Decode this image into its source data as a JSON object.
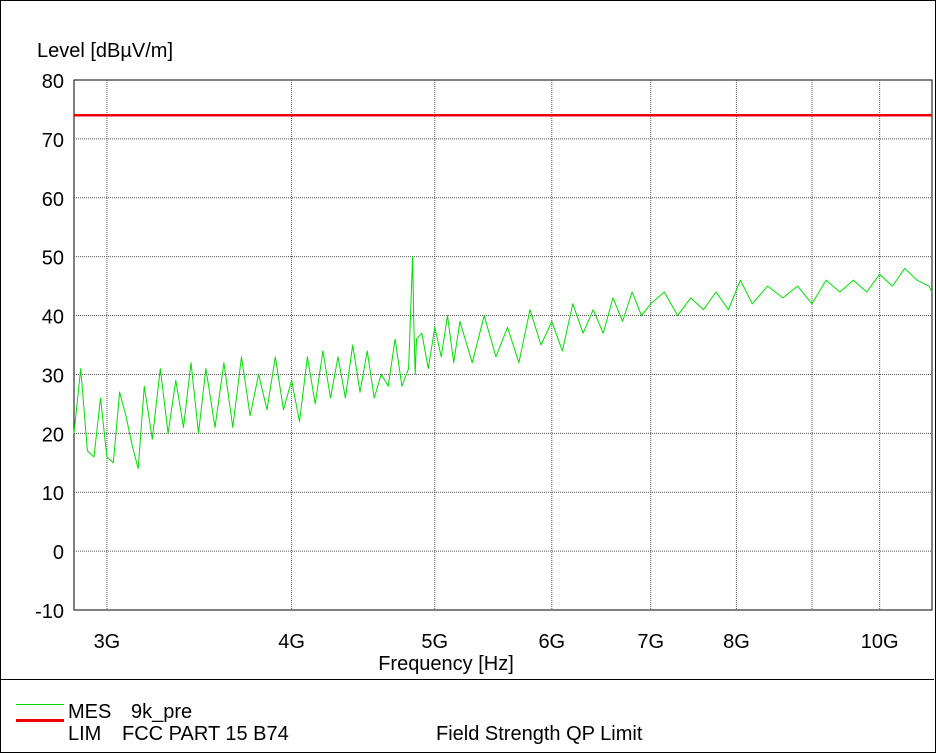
{
  "chart_data": {
    "type": "line",
    "ylabel": "Level [dBµV/m]",
    "xlabel": "Frequency [Hz]",
    "x_scale": "log",
    "xlim": [
      2850000000,
      10850000000
    ],
    "ylim": [
      -10,
      80
    ],
    "grid": true,
    "x_ticks": [
      {
        "value": 3000000000,
        "label": "3G"
      },
      {
        "value": 4000000000,
        "label": "4G"
      },
      {
        "value": 5000000000,
        "label": "5G"
      },
      {
        "value": 6000000000,
        "label": "6G"
      },
      {
        "value": 7000000000,
        "label": "7G"
      },
      {
        "value": 8000000000,
        "label": "8G"
      },
      {
        "value": 10000000000,
        "label": "10G"
      }
    ],
    "x_minor_gridlines": [
      9000000000
    ],
    "y_ticks": [
      -10,
      0,
      10,
      20,
      30,
      40,
      50,
      60,
      70,
      80
    ],
    "series": [
      {
        "name": "MES 9k_pre",
        "color": "#00dd00",
        "x": [
          2850000000,
          2880000000,
          2910000000,
          2940000000,
          2970000000,
          3000000000,
          3030000000,
          3060000000,
          3090000000,
          3120000000,
          3150000000,
          3180000000,
          3220000000,
          3260000000,
          3300000000,
          3340000000,
          3380000000,
          3420000000,
          3460000000,
          3500000000,
          3550000000,
          3600000000,
          3650000000,
          3700000000,
          3750000000,
          3800000000,
          3850000000,
          3900000000,
          3950000000,
          4000000000,
          4050000000,
          4100000000,
          4150000000,
          4200000000,
          4250000000,
          4300000000,
          4350000000,
          4400000000,
          4450000000,
          4500000000,
          4550000000,
          4600000000,
          4650000000,
          4700000000,
          4750000000,
          4800000000,
          4830000000,
          4840000000,
          4850000000,
          4860000000,
          4900000000,
          4950000000,
          5000000000,
          5050000000,
          5100000000,
          5150000000,
          5200000000,
          5300000000,
          5400000000,
          5500000000,
          5600000000,
          5700000000,
          5800000000,
          5900000000,
          6000000000,
          6100000000,
          6200000000,
          6300000000,
          6400000000,
          6500000000,
          6600000000,
          6700000000,
          6800000000,
          6900000000,
          7000000000,
          7150000000,
          7300000000,
          7450000000,
          7600000000,
          7750000000,
          7900000000,
          8050000000,
          8200000000,
          8400000000,
          8600000000,
          8800000000,
          9000000000,
          9200000000,
          9400000000,
          9600000000,
          9800000000,
          10000000000,
          10200000000,
          10400000000,
          10600000000,
          10800000000,
          10850000000
        ],
        "y": [
          20,
          31,
          17,
          16,
          26,
          16,
          15,
          27,
          23,
          18,
          14,
          28,
          19,
          31,
          20,
          29,
          21,
          32,
          20,
          31,
          21,
          32,
          21,
          33,
          23,
          30,
          24,
          33,
          24,
          29,
          22,
          33,
          25,
          34,
          26,
          33,
          26,
          35,
          27,
          34,
          26,
          30,
          28,
          36,
          28,
          31,
          50,
          38,
          30,
          36,
          37,
          31,
          38,
          33,
          40,
          32,
          39,
          32,
          40,
          33,
          38,
          32,
          41,
          35,
          39,
          34,
          42,
          37,
          41,
          37,
          43,
          39,
          44,
          40,
          42,
          44,
          40,
          43,
          41,
          44,
          41,
          46,
          42,
          45,
          43,
          45,
          42,
          46,
          44,
          46,
          44,
          47,
          45,
          48,
          46,
          45,
          44
        ],
        "legend_code": "MES",
        "legend_name": "9k_pre"
      },
      {
        "name": "LIM FCC PART 15 B74",
        "color": "#ee0000",
        "x": [
          2850000000,
          10850000000
        ],
        "y": [
          74,
          74
        ],
        "legend_code": "LIM",
        "legend_name": "FCC PART 15 B74",
        "legend_desc": "Field Strength QP Limit"
      }
    ]
  }
}
